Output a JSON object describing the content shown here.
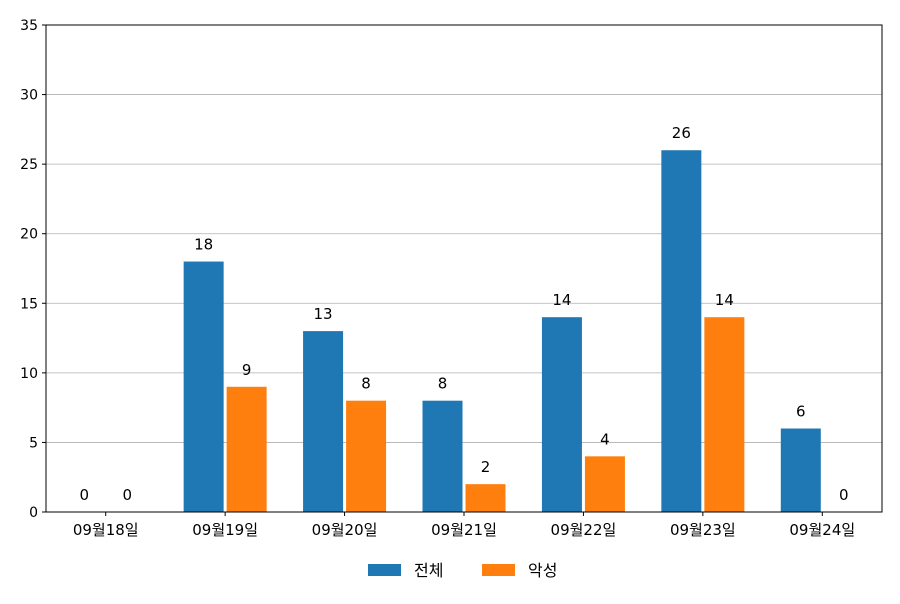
{
  "chart_data": {
    "type": "bar",
    "categories": [
      "09월18일",
      "09월19일",
      "09월20일",
      "09월21일",
      "09월22일",
      "09월23일",
      "09월24일"
    ],
    "series": [
      {
        "name": "전체",
        "values": [
          0,
          18,
          13,
          8,
          14,
          26,
          6
        ],
        "color": "#1f77b4"
      },
      {
        "name": "악성",
        "values": [
          0,
          9,
          8,
          2,
          4,
          14,
          0
        ],
        "color": "#ff7f0e"
      }
    ],
    "ylim": [
      0,
      35
    ],
    "yticks": [
      0,
      5,
      10,
      15,
      20,
      25,
      30,
      35
    ],
    "grid": true,
    "grid_color": "#b0b0b0",
    "legend_position": "bottom-center",
    "data_labels": true
  }
}
